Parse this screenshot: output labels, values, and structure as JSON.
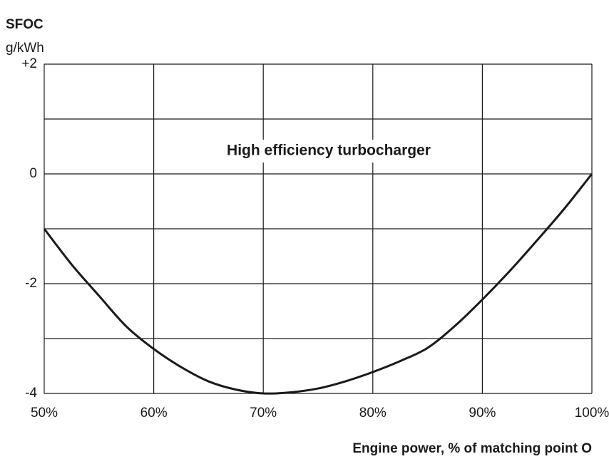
{
  "chart_data": {
    "type": "line",
    "y_label_title": "SFOC",
    "y_label_unit": "g/kWh",
    "x_label": "Engine power, % of matching point O",
    "annotation": "High efficiency turbocharger",
    "x": [
      50,
      52.5,
      55,
      57.5,
      60,
      62.5,
      65,
      67.5,
      70,
      72.5,
      75,
      77.5,
      80,
      82.5,
      85,
      87.5,
      90,
      92.5,
      95,
      97.5,
      100
    ],
    "series": [
      {
        "color": "#1a1a1a",
        "values": [
          -1,
          -1.65,
          -2.22,
          -2.78,
          -3.19,
          -3.52,
          -3.78,
          -3.93,
          -4,
          -3.98,
          -3.91,
          -3.78,
          -3.61,
          -3.41,
          -3.17,
          -2.77,
          -2.29,
          -1.77,
          -1.21,
          -0.63,
          0
        ]
      }
    ],
    "xlim": [
      50,
      100
    ],
    "xticks": [
      {
        "value": 50,
        "label": "50%"
      },
      {
        "value": 60,
        "label": "60%"
      },
      {
        "value": 70,
        "label": "70%"
      },
      {
        "value": 80,
        "label": "80%"
      },
      {
        "value": 90,
        "label": "90%"
      },
      {
        "value": 100,
        "label": "100%"
      }
    ],
    "ylim": [
      -4,
      2
    ],
    "yticks": [
      {
        "value": 2,
        "label": "+2"
      },
      0,
      -2,
      -4
    ],
    "y_minor_grid": [
      -3,
      -1,
      1
    ],
    "grid": true
  }
}
